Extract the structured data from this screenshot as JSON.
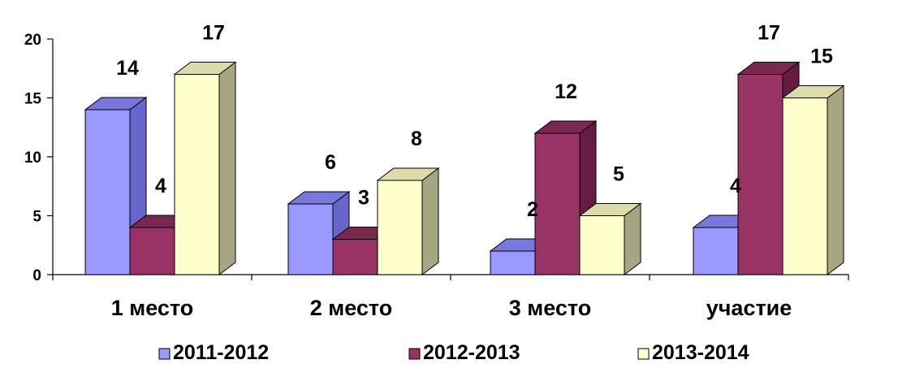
{
  "chart_data": {
    "type": "bar",
    "style": "3d-clustered-column",
    "categories": [
      "1 место",
      "2 место",
      "3 место",
      "участие"
    ],
    "series": [
      {
        "name": "2011-2012",
        "values": [
          14,
          6,
          2,
          4
        ],
        "color": "#9999FF",
        "color_side": "#6666CC",
        "color_top": "#7777DD"
      },
      {
        "name": "2012-2013",
        "values": [
          4,
          3,
          12,
          17
        ],
        "color": "#993366",
        "color_side": "#661C40",
        "color_top": "#7A2850"
      },
      {
        "name": "2013-2014",
        "values": [
          17,
          8,
          5,
          15
        ],
        "color": "#FFFFCC",
        "color_side": "#A6A682",
        "color_top": "#DCDCAA"
      }
    ],
    "yticks": [
      "0",
      "5",
      "10",
      "15",
      "20"
    ],
    "ylim": [
      0,
      20
    ],
    "grid": false,
    "legend_position": "bottom",
    "data_labels": true
  }
}
